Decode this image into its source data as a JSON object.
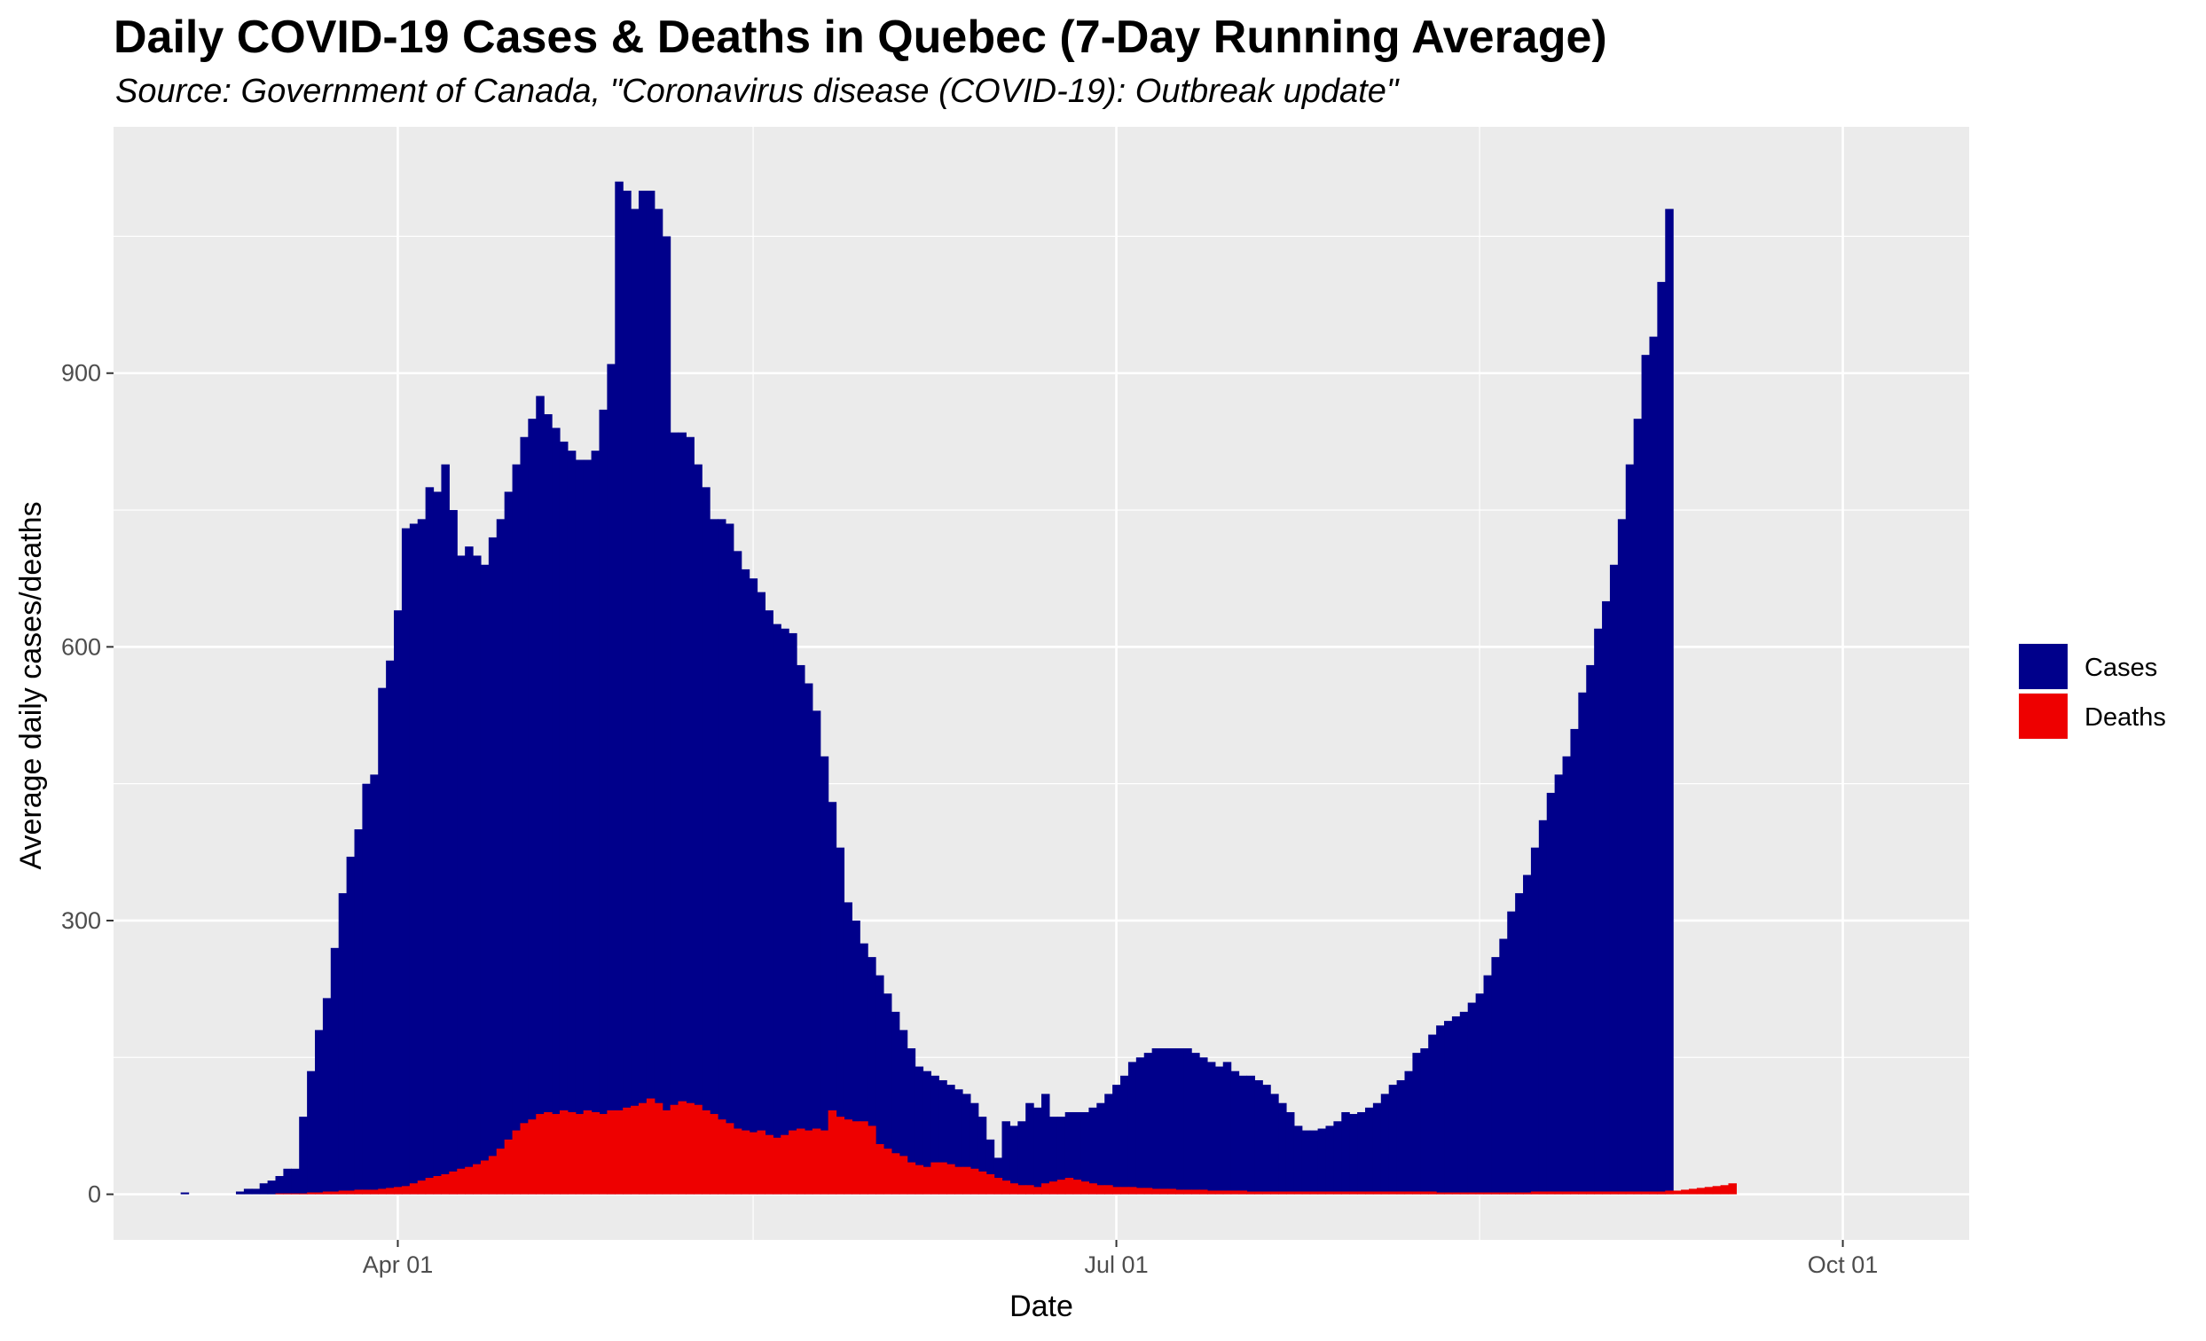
{
  "chart_data": {
    "type": "bar",
    "stacked": false,
    "title": "Daily COVID-19 Cases & Deaths in Quebec (7-Day Running Average)",
    "subtitle": "Source: Government of Canada, \"Coronavirus disease (COVID-19): Outbreak update\"",
    "xlabel": "Date",
    "ylabel": "Average daily cases/deaths",
    "x_start": "2020-03-05",
    "ylim": [
      -50,
      1170
    ],
    "xlim": [
      "2020-02-25",
      "2020-10-17"
    ],
    "y_ticks": [
      0,
      300,
      600,
      900
    ],
    "x_ticks": [
      {
        "date": "2020-04-01",
        "label": "Apr 01"
      },
      {
        "date": "2020-07-01",
        "label": "Jul 01"
      },
      {
        "date": "2020-10-01",
        "label": "Oct 01"
      }
    ],
    "x_minor_grid": [
      "2020-05-16",
      "2020-08-16"
    ],
    "y_minor_grid": [
      150,
      450,
      750,
      1050
    ],
    "grid": true,
    "legend_position": "right",
    "colors": {
      "Cases": "#00008b",
      "Deaths": "#ee0000",
      "panel_background": "#ebebeb",
      "grid": "#ffffff"
    },
    "series": [
      {
        "name": "Cases",
        "color": "#00008b",
        "values": [
          2,
          0,
          0,
          0,
          0,
          0,
          0,
          3,
          6,
          6,
          12,
          15,
          20,
          28,
          28,
          85,
          135,
          180,
          215,
          270,
          330,
          370,
          400,
          450,
          460,
          555,
          585,
          640,
          730,
          735,
          740,
          775,
          770,
          800,
          750,
          700,
          710,
          700,
          690,
          720,
          740,
          770,
          800,
          830,
          850,
          875,
          855,
          840,
          825,
          815,
          805,
          805,
          815,
          860,
          910,
          1110,
          1100,
          1080,
          1100,
          1100,
          1080,
          1050,
          835,
          835,
          830,
          800,
          775,
          740,
          740,
          735,
          705,
          685,
          675,
          660,
          640,
          625,
          620,
          615,
          580,
          560,
          530,
          480,
          430,
          380,
          320,
          300,
          275,
          260,
          240,
          220,
          200,
          180,
          160,
          140,
          135,
          130,
          125,
          120,
          115,
          110,
          100,
          85,
          60,
          40,
          80,
          75,
          80,
          100,
          95,
          110,
          85,
          85,
          90,
          90,
          90,
          95,
          100,
          110,
          120,
          130,
          145,
          150,
          155,
          160,
          160,
          160,
          160,
          160,
          155,
          150,
          145,
          140,
          145,
          135,
          130,
          130,
          125,
          120,
          110,
          100,
          90,
          75,
          70,
          70,
          72,
          75,
          80,
          90,
          88,
          90,
          95,
          100,
          110,
          120,
          125,
          135,
          155,
          160,
          175,
          185,
          190,
          195,
          200,
          210,
          220,
          240,
          260,
          280,
          310,
          330,
          350,
          380,
          410,
          440,
          460,
          480,
          510,
          550,
          580,
          620,
          650,
          690,
          740,
          800,
          850,
          920,
          940,
          1000,
          1080
        ]
      },
      {
        "name": "Deaths",
        "color": "#ee0000",
        "values": [
          0,
          0,
          0,
          0,
          0,
          0,
          0,
          0,
          0,
          0,
          0,
          0,
          1,
          1,
          1,
          1,
          2,
          2,
          3,
          3,
          4,
          4,
          5,
          5,
          5,
          6,
          7,
          8,
          9,
          12,
          15,
          18,
          20,
          22,
          25,
          28,
          30,
          33,
          37,
          42,
          50,
          60,
          70,
          78,
          82,
          88,
          90,
          88,
          92,
          90,
          88,
          92,
          90,
          88,
          92,
          92,
          95,
          97,
          100,
          105,
          100,
          92,
          98,
          102,
          100,
          98,
          92,
          88,
          82,
          78,
          72,
          70,
          68,
          70,
          65,
          62,
          65,
          70,
          72,
          70,
          72,
          70,
          92,
          85,
          82,
          80,
          80,
          75,
          55,
          50,
          45,
          42,
          35,
          32,
          30,
          35,
          35,
          33,
          30,
          30,
          28,
          25,
          22,
          18,
          15,
          12,
          10,
          10,
          8,
          12,
          14,
          16,
          18,
          16,
          14,
          12,
          10,
          10,
          8,
          8,
          8,
          7,
          7,
          6,
          6,
          6,
          5,
          5,
          5,
          5,
          4,
          4,
          4,
          4,
          4,
          3,
          3,
          3,
          3,
          3,
          3,
          3,
          3,
          3,
          3,
          3,
          3,
          3,
          3,
          3,
          3,
          3,
          3,
          3,
          3,
          3,
          3,
          3,
          3,
          2,
          2,
          2,
          2,
          2,
          2,
          2,
          2,
          2,
          2,
          2,
          2,
          3,
          3,
          3,
          3,
          3,
          3,
          3,
          3,
          3,
          3,
          3,
          3,
          3,
          3,
          3,
          3,
          3,
          4,
          4,
          5,
          6,
          7,
          8,
          9,
          10,
          12
        ]
      }
    ]
  }
}
